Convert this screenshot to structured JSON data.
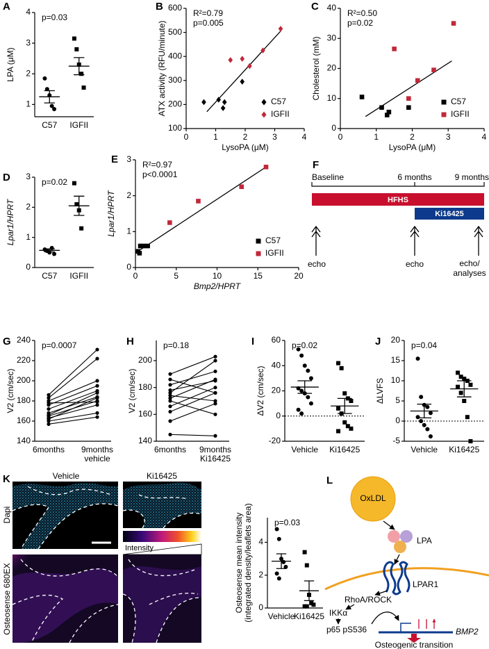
{
  "chart_data": [
    {
      "type": "strip",
      "panel": "A",
      "ylabel": "LPA (μM)",
      "annotations": [
        "p=0.03"
      ],
      "categories": [
        "C57",
        "IGFII"
      ],
      "markers": [
        "circle",
        "square"
      ],
      "color": "#000000",
      "values": [
        [
          1.85,
          1.5,
          1.3,
          0.95,
          0.85
        ],
        [
          3.15,
          2.8,
          2.3,
          2.0,
          1.55
        ]
      ],
      "means": [
        1.25,
        2.25
      ],
      "sem": [
        0.2,
        0.28
      ],
      "ylim": [
        0.6,
        4
      ],
      "yticks": [
        1,
        2,
        3,
        4
      ]
    },
    {
      "type": "scatter",
      "panel": "B",
      "xlabel": "LysoPA (μM)",
      "ylabel": "ATX activity (RFU/minute)",
      "annotations": [
        "R²=0.79",
        "p=0.005"
      ],
      "xlim": [
        0,
        4
      ],
      "xticks": [
        0,
        1,
        2,
        3,
        4
      ],
      "ylim": [
        100,
        600
      ],
      "yticks": [
        100,
        200,
        300,
        400,
        500,
        600
      ],
      "legend": "lower right",
      "series": [
        {
          "name": "C57",
          "color": "#000000",
          "marker": "diamond",
          "x": [
            0.6,
            1.1,
            1.25,
            1.3,
            1.9
          ],
          "y": [
            210,
            220,
            185,
            210,
            295
          ]
        },
        {
          "name": "IGFII",
          "color": "#c0283a",
          "marker": "diamond",
          "x": [
            1.5,
            1.9,
            2.15,
            2.6,
            3.2
          ],
          "y": [
            385,
            390,
            360,
            425,
            515
          ]
        }
      ],
      "fit": {
        "x": [
          0.7,
          3.2
        ],
        "y": [
          170,
          505
        ]
      }
    },
    {
      "type": "scatter",
      "panel": "C",
      "xlabel": "LysoPA (μM)",
      "ylabel": "Cholesterol (mM)",
      "annotations": [
        "R²=0.50",
        "p=0.02"
      ],
      "xlim": [
        0,
        4
      ],
      "xticks": [
        0,
        1,
        2,
        3,
        4
      ],
      "ylim": [
        0,
        40
      ],
      "yticks": [
        0,
        10,
        20,
        30,
        40
      ],
      "legend": "lower right",
      "series": [
        {
          "name": "C57",
          "color": "#000000",
          "marker": "square",
          "x": [
            0.6,
            1.15,
            1.3,
            1.35,
            1.9
          ],
          "y": [
            10.5,
            7,
            4.5,
            5.5,
            7
          ]
        },
        {
          "name": "IGFII",
          "color": "#c0283a",
          "marker": "square",
          "x": [
            1.5,
            1.9,
            2.15,
            2.6,
            3.15
          ],
          "y": [
            26.5,
            10,
            16,
            19.5,
            35
          ]
        }
      ],
      "fit": {
        "x": [
          0.7,
          3.1
        ],
        "y": [
          4,
          22.5
        ]
      }
    },
    {
      "type": "strip",
      "panel": "D",
      "ylabel": "Lpar1/HPRT",
      "annotations": [
        "p=0.02"
      ],
      "categories": [
        "C57",
        "IGFII"
      ],
      "markers": [
        "circle",
        "square"
      ],
      "color": "#000000",
      "values": [
        [
          0.6,
          0.55,
          0.5,
          0.65,
          0.45
        ],
        [
          2.8,
          2.1,
          1.9,
          1.3
        ]
      ],
      "means": [
        0.57,
        2.05
      ],
      "sem": [
        0.05,
        0.32
      ],
      "ylim": [
        0,
        3
      ],
      "yticks": [
        0,
        1,
        2,
        3
      ]
    },
    {
      "type": "scatter",
      "panel": "E",
      "xlabel": "Bmp2/HPRT",
      "ylabel": "Lpar1/HPRT",
      "annotations": [
        "R²=0.97",
        "p<0.0001"
      ],
      "xlim": [
        0,
        20
      ],
      "xticks": [
        0,
        5,
        10,
        15,
        20
      ],
      "ylim": [
        0,
        3
      ],
      "yticks": [
        0,
        1,
        2,
        3
      ],
      "legend": "lower right",
      "series": [
        {
          "name": "C57",
          "color": "#000000",
          "marker": "square",
          "x": [
            0.3,
            0.5,
            0.6,
            1,
            1.5
          ],
          "y": [
            0.45,
            0.4,
            0.6,
            0.6,
            0.6
          ]
        },
        {
          "name": "IGFII",
          "color": "#c0283a",
          "marker": "square",
          "x": [
            4.2,
            7.7,
            13,
            16
          ],
          "y": [
            1.25,
            1.85,
            2.25,
            2.8
          ]
        }
      ],
      "fit": {
        "x": [
          0.3,
          16
        ],
        "y": [
          0.45,
          2.8
        ]
      }
    },
    {
      "type": "paired",
      "panel": "G",
      "ylabel": "V2 (cm/sec)",
      "annotations": [
        "p=0.0007"
      ],
      "categories": [
        "6months",
        [
          "9months",
          "vehicle"
        ]
      ],
      "color": "#000000",
      "pairs": [
        [
          186,
          231
        ],
        [
          183,
          222
        ],
        [
          180,
          200
        ],
        [
          178,
          179
        ],
        [
          176,
          195
        ],
        [
          172,
          190
        ],
        [
          168,
          184
        ],
        [
          166,
          188
        ],
        [
          165,
          180
        ],
        [
          163,
          176
        ],
        [
          162,
          183
        ],
        [
          160,
          168
        ],
        [
          157,
          164
        ]
      ],
      "ylim": [
        140,
        240
      ],
      "yticks": [
        140,
        160,
        180,
        200,
        220,
        240
      ]
    },
    {
      "type": "paired",
      "panel": "H",
      "ylabel": "V2 (cm/sec)",
      "annotations": [
        "p=0.18"
      ],
      "categories": [
        "6months",
        [
          "9months",
          "Ki16425"
        ]
      ],
      "color": "#000000",
      "pairs": [
        [
          190,
          203
        ],
        [
          186,
          176
        ],
        [
          182,
          192
        ],
        [
          178,
          185
        ],
        [
          176,
          200
        ],
        [
          174,
          170
        ],
        [
          172,
          186
        ],
        [
          170,
          160
        ],
        [
          166,
          180
        ],
        [
          162,
          176
        ],
        [
          155,
          168
        ],
        [
          145,
          144
        ]
      ],
      "ylim": [
        140,
        215
      ],
      "yticks": [
        140,
        160,
        180,
        200
      ]
    },
    {
      "type": "strip",
      "panel": "I",
      "ylabel": "ΔV2 (cm/sec)",
      "annotations": [
        "p=0.02"
      ],
      "categories": [
        "Vehicle",
        "Ki16425"
      ],
      "markers": [
        "circle",
        "square"
      ],
      "color": "#000000",
      "values": [
        [
          53,
          48,
          40,
          36,
          30,
          22,
          20,
          18,
          15,
          10,
          5,
          2
        ],
        [
          42,
          38,
          18,
          14,
          12,
          6,
          2,
          -5,
          -8,
          -10,
          -12
        ]
      ],
      "means": [
        23,
        8
      ],
      "sem": [
        5,
        6
      ],
      "hline": 0,
      "ylim": [
        -20,
        60
      ],
      "yticks": [
        -20,
        0,
        20,
        40,
        60
      ]
    },
    {
      "type": "strip",
      "panel": "J",
      "ylabel": "ΔLVFS",
      "annotations": [
        "p=0.04"
      ],
      "categories": [
        "Vehicle",
        "Ki16425"
      ],
      "markers": [
        "circle",
        "square"
      ],
      "color": "#000000",
      "values": [
        [
          15.5,
          6,
          4,
          3.5,
          2,
          1,
          0,
          -1,
          -2,
          -3.8
        ],
        [
          12,
          11,
          10.5,
          10,
          9,
          8.5,
          7,
          5,
          1,
          -5
        ]
      ],
      "means": [
        2.5,
        8
      ],
      "sem": [
        1.7,
        2
      ],
      "hline": 0,
      "ylim": [
        -5,
        20
      ],
      "yticks": [
        -5,
        0,
        5,
        10,
        15,
        20
      ]
    },
    {
      "type": "strip",
      "ylabel": [
        "Osteosense mean intensity",
        "(integrated density/leaflets area)"
      ],
      "annotations": [
        "p=0.03"
      ],
      "categories": [
        "Vehicle",
        "Ki16425"
      ],
      "markers": [
        "circle",
        "square"
      ],
      "color": "#000000",
      "values": [
        [
          4.8,
          4.2,
          3,
          2.8,
          2.5,
          2.1,
          1.8
        ],
        [
          3.4,
          2.6,
          0.8,
          0.3,
          0.2,
          0.1,
          0.1
        ]
      ],
      "means": [
        2.85,
        1.05
      ],
      "sem": [
        0.45,
        0.6
      ],
      "ylim": [
        0,
        5.5
      ],
      "yticks": [
        0,
        2,
        4
      ]
    }
  ],
  "timeline": {
    "panel": "F",
    "labels": [
      "Baseline",
      "6 months",
      "9 months"
    ],
    "bars": [
      "HFHS",
      "Ki16425"
    ],
    "events": [
      "echo",
      "echo",
      [
        "echo/",
        "analyses"
      ]
    ]
  },
  "images": {
    "panel": "K",
    "columns": [
      "Vehicle",
      "Ki16425"
    ],
    "rows": [
      "Dapi",
      "Osteosense 680EX"
    ],
    "scale": "Intensity"
  },
  "diagram": {
    "panel": "L",
    "nodes": [
      "OxLDL",
      "LPA",
      "LPAR1",
      "RhoA/ROCK",
      "IKKα",
      "p65 pS536",
      "BMP2",
      "Osteogenic transition"
    ]
  }
}
